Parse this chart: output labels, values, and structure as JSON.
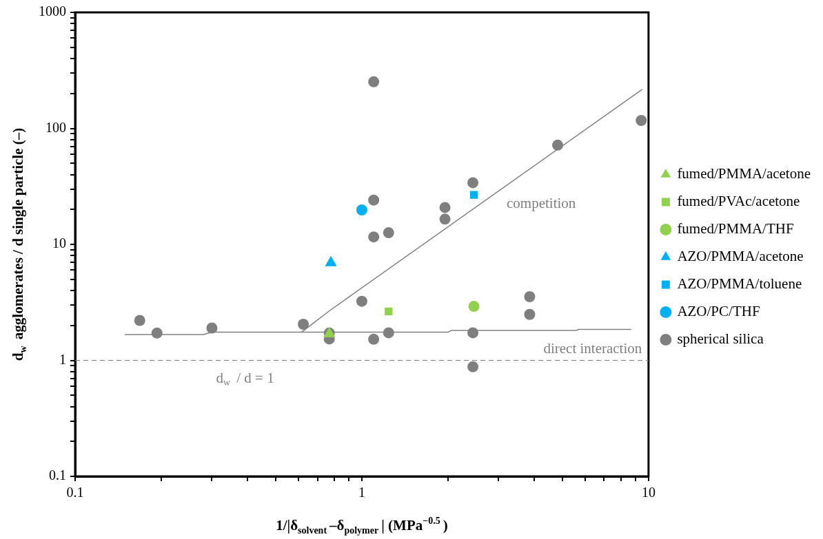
{
  "chart_data": {
    "type": "scatter",
    "xlabel": "1/|δ$_{solvent}$–δ$_{polymer}$| (MPa$^{−0.5}$)",
    "ylabel": "d$_{w}$ agglomerates / d single particle (–)",
    "log": "xy",
    "xlim": [
      0.1,
      10
    ],
    "ylim": [
      0.1,
      1000
    ],
    "xticks": [
      0.1,
      {
        "value": 0.2,
        "label": null
      },
      {
        "value": 0.3,
        "label": null
      },
      {
        "value": 0.4,
        "label": null
      },
      {
        "value": 0.5,
        "label": null
      },
      {
        "value": 0.6,
        "label": null
      },
      {
        "value": 0.7,
        "label": null
      },
      {
        "value": 0.8,
        "label": null
      },
      {
        "value": 0.9,
        "label": null
      },
      1,
      {
        "value": 2,
        "label": null
      },
      {
        "value": 3,
        "label": null
      },
      {
        "value": 4,
        "label": null
      },
      {
        "value": 5,
        "label": null
      },
      {
        "value": 6,
        "label": null
      },
      {
        "value": 7,
        "label": null
      },
      {
        "value": 8,
        "label": null
      },
      {
        "value": 9,
        "label": null
      },
      10
    ],
    "yticks": [
      0.1,
      {
        "value": 0.2,
        "label": null
      },
      {
        "value": 0.3,
        "label": null
      },
      {
        "value": 0.4,
        "label": null
      },
      {
        "value": 0.5,
        "label": null
      },
      {
        "value": 0.6,
        "label": null
      },
      {
        "value": 0.7,
        "label": null
      },
      {
        "value": 0.8,
        "label": null
      },
      {
        "value": 0.9,
        "label": null
      },
      1,
      {
        "value": 2,
        "label": null
      },
      {
        "value": 3,
        "label": null
      },
      {
        "value": 4,
        "label": null
      },
      {
        "value": 5,
        "label": null
      },
      {
        "value": 6,
        "label": null
      },
      {
        "value": 7,
        "label": null
      },
      {
        "value": 8,
        "label": null
      },
      {
        "value": 9,
        "label": null
      },
      10,
      {
        "value": 20,
        "label": null
      },
      {
        "value": 30,
        "label": null
      },
      {
        "value": 40,
        "label": null
      },
      {
        "value": 50,
        "label": null
      },
      {
        "value": 60,
        "label": null
      },
      {
        "value": 70,
        "label": null
      },
      {
        "value": 80,
        "label": null
      },
      {
        "value": 90,
        "label": null
      },
      100,
      {
        "value": 200,
        "label": null
      },
      {
        "value": 300,
        "label": null
      },
      {
        "value": 400,
        "label": null
      },
      {
        "value": 500,
        "label": null
      },
      {
        "value": 600,
        "label": null
      },
      {
        "value": 700,
        "label": null
      },
      {
        "value": 800,
        "label": null
      },
      {
        "value": 900,
        "label": null
      },
      1000
    ],
    "grid": false,
    "legend": "right",
    "series": [
      {
        "name": "fumed/PMMA/acetone",
        "color": "#92d050",
        "marker": "triangle",
        "x": [
          0.77
        ],
        "values": [
          1.69
        ]
      },
      {
        "name": "fumed/PVAc/acetone",
        "color": "#92d050",
        "marker": "square",
        "x": [
          1.24
        ],
        "values": [
          2.64
        ]
      },
      {
        "name": "fumed/PMMA/THF",
        "color": "#92d050",
        "marker": "circle",
        "x": [
          2.46
        ],
        "values": [
          2.92
        ]
      },
      {
        "name": "AZO/PMMA/acetone",
        "color": "#00b0f0",
        "marker": "triangle",
        "x": [
          0.78
        ],
        "values": [
          6.95
        ]
      },
      {
        "name": "AZO/PMMA/toluene",
        "color": "#00b0f0",
        "marker": "square",
        "x": [
          2.46
        ],
        "values": [
          26.7
        ]
      },
      {
        "name": "AZO/PC/THF",
        "color": "#00b0f0",
        "marker": "circle",
        "x": [
          1.0
        ],
        "values": [
          19.8
        ]
      },
      {
        "name": "spherical silica",
        "color": "#7f7f7f",
        "marker": "circle",
        "x": [
          0.168,
          0.193,
          0.3,
          0.625,
          0.77,
          0.77,
          1.0,
          1.1,
          1.1,
          1.1,
          1.1,
          1.24,
          1.24,
          1.95,
          1.95,
          2.44,
          2.44,
          2.44,
          3.85,
          3.85,
          4.82,
          9.43
        ],
        "values": [
          2.21,
          1.72,
          1.9,
          2.05,
          1.72,
          1.53,
          3.23,
          252,
          24.1,
          11.6,
          1.52,
          12.6,
          1.73,
          20.8,
          16.5,
          34,
          1.73,
          0.88,
          3.54,
          2.49,
          71.7,
          117
        ]
      },
      {
        "type": "line",
        "color": "#808080",
        "marker": "none",
        "x": [
          0.616,
          0.69,
          0.78,
          9.5
        ],
        "values": [
          1.75,
          2.17,
          2.73,
          217
        ]
      },
      {
        "type": "line",
        "color": "#808080",
        "marker": "none",
        "x": [
          0.149,
          0.28,
          0.3,
          2.0,
          2.05,
          5.6,
          5.7,
          8.7
        ],
        "values": [
          1.67,
          1.67,
          1.75,
          1.75,
          1.81,
          1.81,
          1.85,
          1.85
        ]
      }
    ],
    "ref_lines": [
      {
        "axis": "y",
        "value": 1,
        "color": "#7f7f7f",
        "line_style": "dashed"
      }
    ],
    "annotations": [
      {
        "text": "competition",
        "x": 3.2,
        "y": 32.3
      },
      {
        "text": "direct interaction",
        "x": 4.3,
        "y": 1.81
      },
      {
        "text": "d$_{w}$ / d = 1",
        "x": 0.31,
        "y": 1
      }
    ]
  }
}
